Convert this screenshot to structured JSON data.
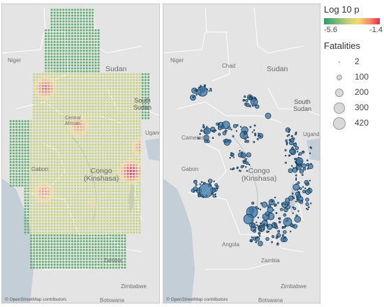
{
  "left_map": {
    "labels": {
      "niger": "Niger",
      "sudan": "Sudan",
      "south_sudan": "South\nSudan",
      "uganda": "Uganda",
      "gabon": "Gabon",
      "central_african": "Central\nAfrican",
      "congo": "Congo\n(Kinshasa)",
      "zambia": "Zambia",
      "zimbabwe": "Zimbabwe",
      "botswana": "Botswana"
    },
    "attribution": "© OpenStreetMap contributors"
  },
  "right_map": {
    "labels": {
      "chad": "Chad",
      "niger": "Niger",
      "sudan": "Sudan",
      "south_sudan": "South\nSudan",
      "uganda": "Uganda",
      "cameroon": "Cameroon",
      "gabon": "Gabon",
      "congo": "Congo\n(Kinshasa)",
      "angola": "Angola",
      "zambia": "Zambia",
      "zimbabwe": "Zimbabwe",
      "botswana": "Botswana"
    },
    "attribution": "© OpenStreetMap contributors"
  },
  "legend": {
    "color_title": "Log 10 p",
    "color_min": "-5.6",
    "color_max": "-1.4",
    "size_title": "Fatalities",
    "sizes": [
      {
        "label": "2",
        "value": 2
      },
      {
        "label": "100",
        "value": 100
      },
      {
        "label": "200",
        "value": 200
      },
      {
        "label": "300",
        "value": 300
      },
      {
        "label": "420",
        "value": 420
      }
    ]
  },
  "colors": {
    "low": "#2e9b6b",
    "mid": "#f5d76e",
    "high": "#e62a45",
    "event_fill": "#3a78a8",
    "event_stroke": "#0f2c44"
  }
}
